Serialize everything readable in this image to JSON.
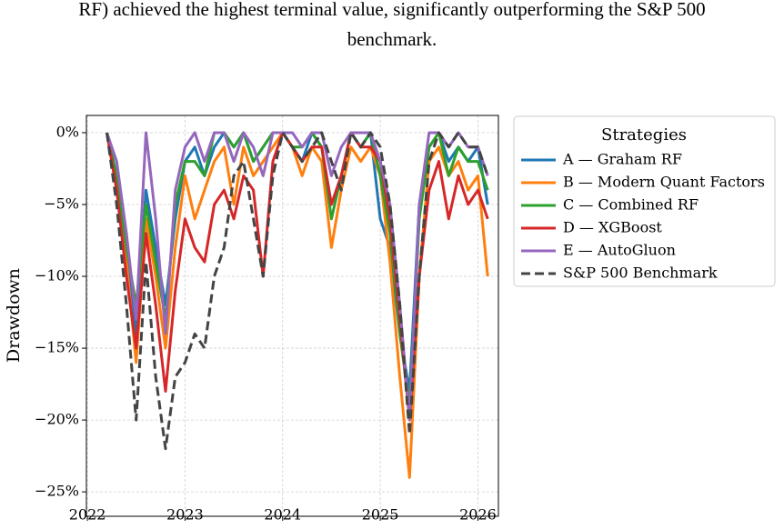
{
  "caption": [
    "RF) achieved the highest terminal value, significantly outperforming the S&P 500",
    "benchmark."
  ],
  "chart_data": {
    "type": "line",
    "ylabel": "Drawdown",
    "legend_title": "Strategies",
    "legend": "outside-upper-right",
    "grid": true,
    "x": [
      2022.2,
      2022.3,
      2022.4,
      2022.5,
      2022.6,
      2022.7,
      2022.8,
      2022.9,
      2023.0,
      2023.1,
      2023.2,
      2023.3,
      2023.4,
      2023.5,
      2023.6,
      2023.7,
      2023.8,
      2023.9,
      2024.0,
      2024.1,
      2024.2,
      2024.3,
      2024.4,
      2024.5,
      2024.6,
      2024.7,
      2024.8,
      2024.9,
      2025.0,
      2025.1,
      2025.2,
      2025.3,
      2025.4,
      2025.5,
      2025.6,
      2025.7,
      2025.8,
      2025.9,
      2026.0,
      2026.1
    ],
    "xlim": [
      2021.99,
      2026.21
    ],
    "xticks": [
      2022,
      2023,
      2024,
      2025,
      2026
    ],
    "ylim": [
      -26.7,
      1.2
    ],
    "yticks": [
      {
        "value": 0,
        "label": "0%"
      },
      {
        "value": -5,
        "label": "−5%"
      },
      {
        "value": -10,
        "label": "−10%"
      },
      {
        "value": -15,
        "label": "−15%"
      },
      {
        "value": -20,
        "label": "−20%"
      },
      {
        "value": -25,
        "label": "−25%"
      }
    ],
    "series": [
      {
        "name": "A — Graham RF",
        "color": "#1f77b4",
        "dashed": false,
        "values": [
          0,
          -3,
          -8,
          -14,
          -4,
          -8,
          -12,
          -6,
          -2,
          -1,
          -3,
          -1,
          0,
          -1,
          0,
          -2,
          -1,
          0,
          0,
          -1,
          -2,
          0,
          -1,
          -5,
          -3,
          0,
          -1,
          0,
          -6,
          -8,
          -14,
          -18,
          -5,
          -1,
          0,
          -2,
          -1,
          -2,
          -1,
          -5
        ]
      },
      {
        "name": "B — Modern Quant Factors",
        "color": "#ff7f0e",
        "dashed": false,
        "values": [
          0,
          -4,
          -9,
          -16,
          -6,
          -10,
          -15,
          -8,
          -3,
          -6,
          -4,
          -2,
          -1,
          -5,
          -1,
          -3,
          -2,
          -1,
          0,
          -1,
          -3,
          -1,
          -2,
          -8,
          -4,
          -1,
          -2,
          -1,
          -3,
          -9,
          -17,
          -24,
          -10,
          -2,
          -1,
          -3,
          -2,
          -4,
          -3,
          -10
        ]
      },
      {
        "name": "C — Combined RF",
        "color": "#2ca02c",
        "dashed": false,
        "values": [
          0,
          -3,
          -8,
          -12,
          -5,
          -9,
          -13,
          -5,
          -2,
          -2,
          -3,
          0,
          0,
          -1,
          0,
          -2,
          -1,
          0,
          0,
          -1,
          -1,
          0,
          -1,
          -6,
          -3,
          0,
          -1,
          0,
          -3,
          -7,
          -14,
          -19,
          -6,
          -1,
          0,
          -3,
          -1,
          -2,
          -2,
          -4
        ]
      },
      {
        "name": "D — XGBoost",
        "color": "#d62728",
        "dashed": false,
        "values": [
          0,
          -4,
          -10,
          -15,
          -7,
          -12,
          -18,
          -11,
          -6,
          -8,
          -9,
          -5,
          -4,
          -6,
          -3,
          -4,
          -10,
          -2,
          0,
          -1,
          -2,
          -1,
          -1,
          -5,
          -3,
          0,
          -1,
          -1,
          -2,
          -6,
          -13,
          -20,
          -10,
          -4,
          -2,
          -6,
          -3,
          -5,
          -4,
          -6
        ]
      },
      {
        "name": "E — AutoGluon",
        "color": "#9467bd",
        "dashed": false,
        "values": [
          0,
          -2,
          -7,
          -13,
          0,
          -6,
          -14,
          -4,
          -1,
          0,
          -2,
          0,
          0,
          -2,
          0,
          -1,
          -3,
          0,
          0,
          0,
          -1,
          0,
          0,
          -3,
          -1,
          0,
          0,
          0,
          -2,
          -5,
          -12,
          -20,
          -5,
          0,
          0,
          -1,
          0,
          -1,
          -1,
          -3
        ]
      },
      {
        "name": "S&P 500 Benchmark",
        "color": "#444444",
        "dashed": true,
        "values": [
          0,
          -5,
          -12,
          -20,
          -9,
          -17,
          -22,
          -17,
          -16,
          -14,
          -15,
          -10,
          -8,
          -3,
          -2,
          -6,
          -10,
          -3,
          0,
          -1,
          -2,
          -1,
          0,
          -2,
          -4,
          0,
          -1,
          0,
          -1,
          -5,
          -12,
          -21,
          -10,
          -2,
          0,
          -1,
          0,
          -1,
          -1,
          -3
        ]
      }
    ]
  }
}
